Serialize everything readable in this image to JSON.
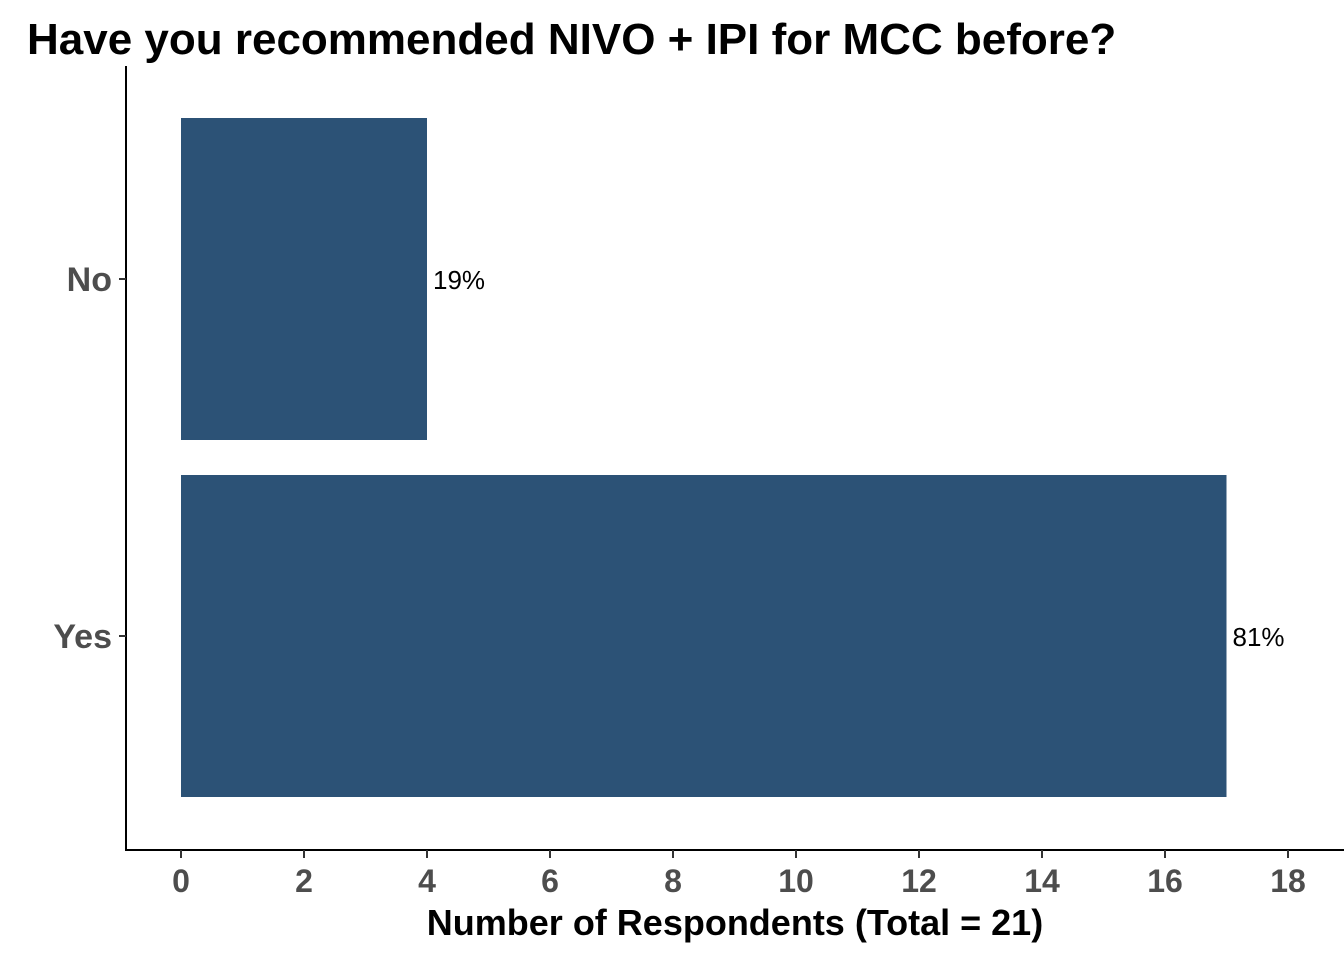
{
  "chart_data": {
    "type": "bar",
    "orientation": "horizontal",
    "title": "Have you recommended NIVO + IPI for MCC before?",
    "xlabel": "Number of Respondents (Total = 21)",
    "ylabel": "",
    "categories": [
      "No",
      "Yes"
    ],
    "values": [
      4,
      17
    ],
    "data_labels": [
      "19%",
      "81%"
    ],
    "xlim": [
      0,
      18
    ],
    "xticks": [
      0,
      2,
      4,
      6,
      8,
      10,
      12,
      14,
      16,
      18
    ],
    "grid": false,
    "bar_color": "#2C5276"
  }
}
